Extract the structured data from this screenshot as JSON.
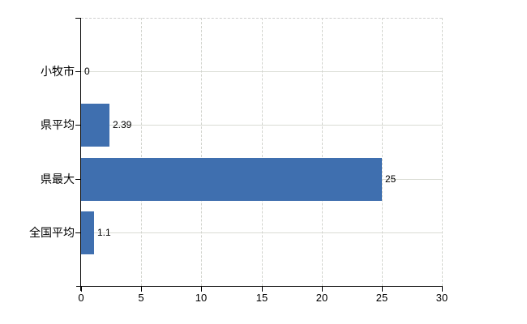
{
  "colors": {
    "bar": "#3f6faf",
    "hgrid": "#dadcd4",
    "vgrid": "#d3d5cf",
    "border_dash": "#cfcfcf",
    "axis": "#000000",
    "text": "#000000",
    "background": "#ffffff"
  },
  "chart_data": {
    "type": "bar",
    "orientation": "horizontal",
    "title": "",
    "categories": [
      "小牧市",
      "県平均",
      "県最大",
      "全国平均"
    ],
    "values": [
      0,
      2.39,
      25,
      1.1
    ],
    "value_labels": [
      "0",
      "2.39",
      "25",
      "1.1"
    ],
    "x_ticks": [
      0,
      5,
      10,
      15,
      20,
      25,
      30
    ],
    "x_tick_labels": [
      "0",
      "5",
      "10",
      "15",
      "20",
      "25",
      "30"
    ],
    "xlim": [
      0,
      30
    ],
    "xlabel": "",
    "ylabel": "",
    "grid": true,
    "legend": "none"
  }
}
